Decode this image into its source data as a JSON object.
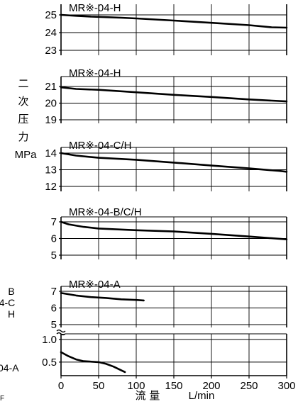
{
  "chart_data": {
    "type": "line",
    "x_axis": {
      "label_cjk": "流 量",
      "label_unit": "L/min",
      "range": [
        0,
        300
      ],
      "ticks": [
        0,
        50,
        100,
        150,
        200,
        250,
        300
      ],
      "tick_labels": [
        "0",
        "50",
        "100",
        "150",
        "200",
        "250",
        "300"
      ]
    },
    "y_axis_label": {
      "chars": [
        "二",
        "次",
        "压",
        "力"
      ],
      "unit": "MPa"
    },
    "side_labels": {
      "B": "B",
      "line2": "4-C",
      "H": "H",
      "A": "04-A",
      "stray": "F"
    },
    "panels": [
      {
        "title": "MR※-04-H",
        "ylim": [
          23,
          25
        ],
        "yticks": [
          23,
          24,
          25
        ],
        "series": [
          {
            "x": [
              0,
              20,
              40,
              60,
              80,
              100,
              150,
              200,
              250,
              280,
              300
            ],
            "y": [
              25.0,
              24.95,
              24.9,
              24.87,
              24.84,
              24.8,
              24.68,
              24.55,
              24.42,
              24.3,
              24.28
            ]
          }
        ]
      },
      {
        "title": "MR※-04-H",
        "ylim": [
          19,
          21
        ],
        "yticks": [
          19,
          20,
          21
        ],
        "series": [
          {
            "x": [
              0,
              20,
              50,
              100,
              150,
              200,
              250,
              300
            ],
            "y": [
              20.95,
              20.85,
              20.8,
              20.65,
              20.5,
              20.37,
              20.22,
              20.1
            ]
          }
        ]
      },
      {
        "title": "MR※-04-C/H",
        "ylim": [
          12,
          14
        ],
        "yticks": [
          12,
          13,
          14
        ],
        "series": [
          {
            "x": [
              0,
              20,
              50,
              100,
              150,
              200,
              250,
              290,
              300
            ],
            "y": [
              14.0,
              13.85,
              13.72,
              13.6,
              13.43,
              13.25,
              13.08,
              12.93,
              12.88
            ]
          }
        ]
      },
      {
        "title": "MR※-04-B/C/H",
        "ylim": [
          5,
          7
        ],
        "yticks": [
          5,
          6,
          7
        ],
        "series": [
          {
            "x": [
              0,
              10,
              30,
              50,
              100,
              150,
              200,
              250,
              300
            ],
            "y": [
              7.0,
              6.85,
              6.7,
              6.6,
              6.5,
              6.42,
              6.28,
              6.12,
              5.95
            ]
          }
        ]
      },
      {
        "title": "MR※-04-A",
        "ylim": [
          5,
          7
        ],
        "yticks": [
          5,
          6,
          7
        ],
        "series": [
          {
            "x": [
              0,
              20,
              40,
              60,
              80,
              100,
              110
            ],
            "y": [
              6.9,
              6.75,
              6.65,
              6.6,
              6.52,
              6.48,
              6.45
            ]
          }
        ]
      },
      {
        "title": "",
        "ylim": [
          0.2,
          1.0
        ],
        "yticks": [
          0.5,
          1.0
        ],
        "ytick_labels": [
          "0.5",
          "1.0"
        ],
        "series": [
          {
            "x": [
              0,
              10,
              20,
              30,
              50,
              60,
              70,
              80,
              85
            ],
            "y": [
              0.72,
              0.63,
              0.56,
              0.52,
              0.5,
              0.46,
              0.4,
              0.32,
              0.28
            ]
          }
        ]
      }
    ]
  }
}
